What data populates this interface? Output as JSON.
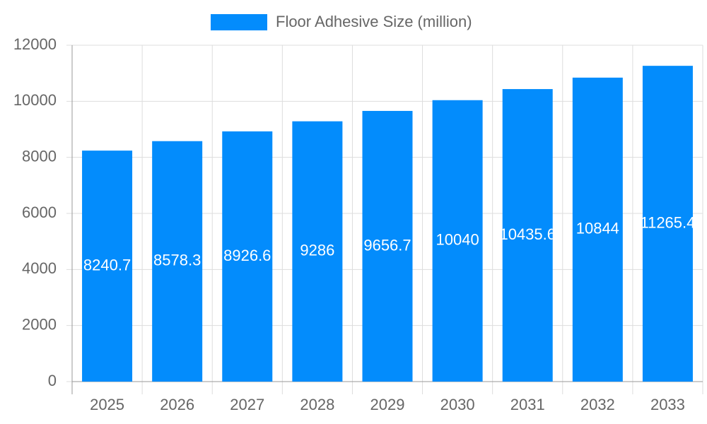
{
  "chart_data": {
    "type": "bar",
    "categories": [
      "2025",
      "2026",
      "2027",
      "2028",
      "2029",
      "2030",
      "2031",
      "2032",
      "2033"
    ],
    "series": [
      {
        "name": "Floor Adhesive Size (million)",
        "color": "#038cfc",
        "values": [
          8240.7,
          8578.3,
          8926.6,
          9286,
          9656.7,
          10040,
          10435.6,
          10844,
          11265.4
        ]
      }
    ],
    "ylim": [
      0,
      12000
    ],
    "yticks": [
      0,
      2000,
      4000,
      6000,
      8000,
      10000,
      12000
    ],
    "grid": true
  }
}
